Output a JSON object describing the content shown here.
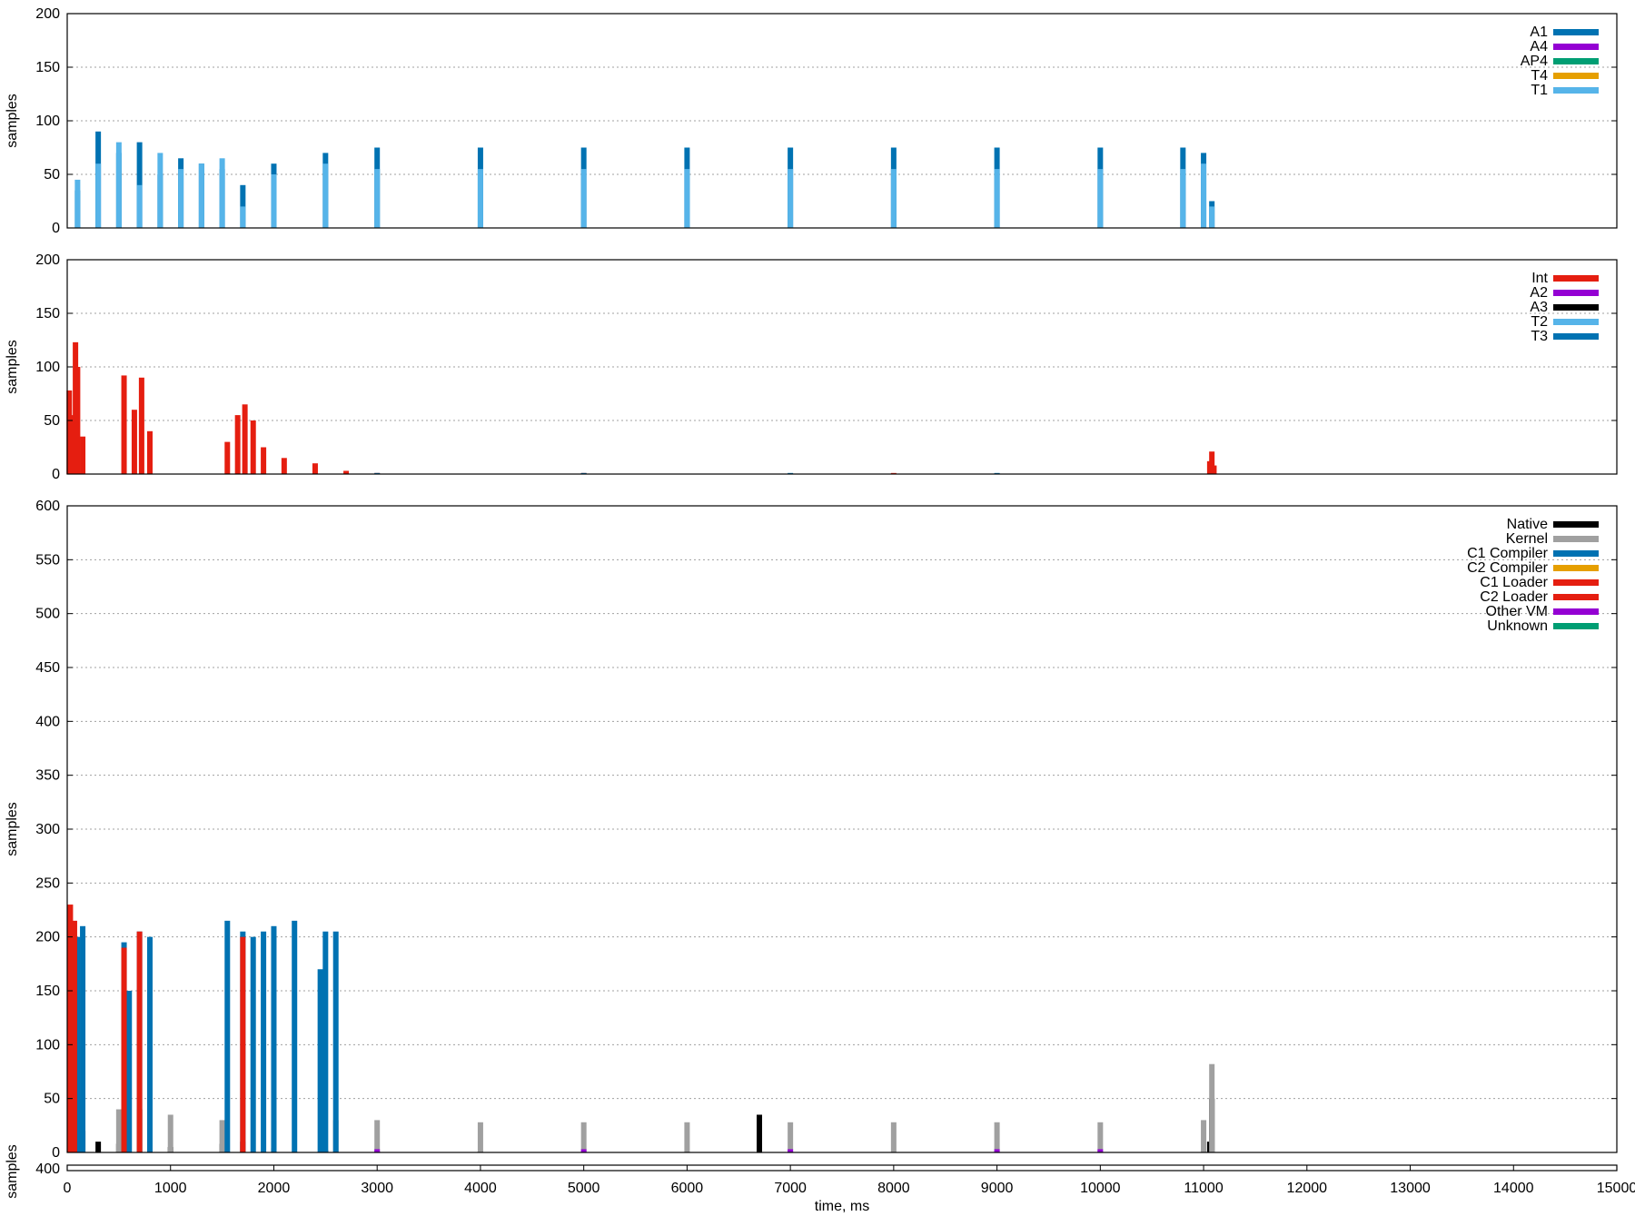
{
  "colors": {
    "A1": "#0072b2",
    "A4": "#9400d3",
    "AP4": "#009e73",
    "T4": "#e69f00",
    "T1": "#56b4e9",
    "Int": "#e51e10",
    "A2": "#9400d3",
    "A3": "#000000",
    "T2": "#56b4e9",
    "T3": "#0072b2",
    "Native": "#000000",
    "Kernel": "#a0a0a0",
    "C1 Compiler": "#0072b2",
    "C2 Compiler": "#e69f00",
    "C1 Loader": "#e51e10",
    "C2 Loader": "#e51e10",
    "Other VM": "#9400d3",
    "Unknown": "#009e73"
  },
  "chart_data": [
    {
      "type": "bar",
      "title": "",
      "xlabel": "",
      "ylabel": "samples",
      "xlim": [
        0,
        15000
      ],
      "ylim": [
        0,
        200
      ],
      "yticks": [
        "0",
        "50",
        "100",
        "150",
        "200"
      ],
      "grid": true,
      "legend_position": "top-right",
      "legend": [
        "A1",
        "A4",
        "AP4",
        "T4",
        "T1"
      ],
      "series": [
        {
          "name": "A1",
          "x": [
            100,
            300,
            500,
            700,
            900,
            1100,
            1300,
            1500,
            1700,
            2000,
            2500,
            3000,
            4000,
            5000,
            6000,
            7000,
            8000,
            9000,
            10000,
            10800,
            11000,
            11080
          ],
          "values": [
            35,
            90,
            70,
            80,
            50,
            65,
            60,
            55,
            40,
            60,
            70,
            75,
            75,
            75,
            75,
            75,
            75,
            75,
            75,
            75,
            70,
            25
          ]
        },
        {
          "name": "T1",
          "x": [
            100,
            300,
            500,
            700,
            900,
            1100,
            1300,
            1500,
            1700,
            2000,
            2500,
            3000,
            4000,
            5000,
            6000,
            7000,
            8000,
            9000,
            10000,
            10800,
            11000,
            11080
          ],
          "values": [
            45,
            60,
            80,
            40,
            70,
            55,
            60,
            65,
            20,
            50,
            60,
            55,
            55,
            55,
            55,
            55,
            55,
            55,
            55,
            55,
            60,
            20
          ]
        },
        {
          "name": "A4",
          "x": [],
          "values": []
        },
        {
          "name": "AP4",
          "x": [],
          "values": []
        },
        {
          "name": "T4",
          "x": [],
          "values": []
        }
      ]
    },
    {
      "type": "bar",
      "title": "",
      "xlabel": "",
      "ylabel": "samples",
      "xlim": [
        0,
        15000
      ],
      "ylim": [
        0,
        200
      ],
      "yticks": [
        "0",
        "50",
        "100",
        "150",
        "200"
      ],
      "grid": true,
      "legend_position": "top-right",
      "legend": [
        "Int",
        "A2",
        "A3",
        "T2",
        "T3"
      ],
      "series": [
        {
          "name": "Int",
          "x": [
            20,
            60,
            80,
            100,
            150,
            550,
            650,
            720,
            800,
            1550,
            1650,
            1720,
            1800,
            1900,
            2100,
            2400,
            2700,
            3000,
            5000,
            8000,
            11060,
            11080,
            11100
          ],
          "values": [
            78,
            55,
            123,
            100,
            35,
            92,
            60,
            90,
            40,
            30,
            55,
            65,
            50,
            25,
            15,
            10,
            3,
            1,
            1,
            1,
            12,
            21,
            8
          ]
        },
        {
          "name": "T3",
          "x": [
            3000,
            5000,
            7000,
            9000
          ],
          "values": [
            1,
            1,
            1,
            1
          ]
        },
        {
          "name": "A2",
          "x": [],
          "values": []
        },
        {
          "name": "A3",
          "x": [],
          "values": []
        },
        {
          "name": "T2",
          "x": [],
          "values": []
        }
      ]
    },
    {
      "type": "bar",
      "title": "",
      "xlabel": "time, ms",
      "ylabel": "samples",
      "xlim": [
        0,
        15000
      ],
      "ylim": [
        0,
        600
      ],
      "xticks": [
        "0",
        "1000",
        "2000",
        "3000",
        "4000",
        "5000",
        "6000",
        "7000",
        "8000",
        "9000",
        "10000",
        "11000",
        "12000",
        "13000",
        "14000",
        "15000"
      ],
      "yticks": [
        "0",
        "50",
        "100",
        "150",
        "200",
        "250",
        "300",
        "350",
        "400",
        "450",
        "500",
        "550",
        "600"
      ],
      "grid": true,
      "legend_position": "top-right",
      "legend": [
        "Native",
        "Kernel",
        "C1 Compiler",
        "C2 Compiler",
        "C1 Loader",
        "C2 Loader",
        "Other VM",
        "Unknown"
      ],
      "series": [
        {
          "name": "Native",
          "x": [
            50,
            150,
            300,
            500,
            700,
            1000,
            1500,
            1700,
            2000,
            2500,
            3000,
            4000,
            6700,
            11060,
            11080
          ],
          "values": [
            30,
            20,
            10,
            8,
            40,
            5,
            8,
            10,
            4,
            2,
            1,
            1,
            35,
            10,
            50
          ]
        },
        {
          "name": "Kernel",
          "x": [
            100,
            500,
            1000,
            1500,
            2000,
            2600,
            3000,
            4000,
            5000,
            6000,
            7000,
            8000,
            9000,
            10000,
            11000,
            11080
          ],
          "values": [
            50,
            40,
            35,
            30,
            30,
            30,
            30,
            28,
            28,
            28,
            28,
            28,
            28,
            28,
            30,
            82
          ]
        },
        {
          "name": "C1 Compiler",
          "x": [
            50,
            100,
            150,
            550,
            600,
            700,
            800,
            1550,
            1700,
            1800,
            1900,
            2000,
            2200,
            2450,
            2500,
            2600
          ],
          "values": [
            100,
            200,
            210,
            195,
            150,
            205,
            200,
            215,
            205,
            200,
            205,
            210,
            215,
            170,
            205,
            205
          ]
        },
        {
          "name": "C1 Loader",
          "x": [
            30,
            70,
            550,
            700,
            1700
          ],
          "values": [
            230,
            215,
            190,
            205,
            200
          ]
        },
        {
          "name": "C2 Loader",
          "x": [],
          "values": []
        },
        {
          "name": "C2 Compiler",
          "x": [],
          "values": []
        },
        {
          "name": "Other VM",
          "x": [
            3000,
            5000,
            7000,
            9000,
            10000
          ],
          "values": [
            3,
            3,
            3,
            3,
            3
          ]
        },
        {
          "name": "Unknown",
          "x": [],
          "values": []
        }
      ]
    },
    {
      "type": "bar",
      "title": "",
      "xlabel": "time, ms",
      "ylabel": "samples",
      "xlim": [
        0,
        15000
      ],
      "ylim": [
        0,
        400
      ],
      "yticks": [
        "400"
      ],
      "grid": false,
      "series": []
    }
  ]
}
